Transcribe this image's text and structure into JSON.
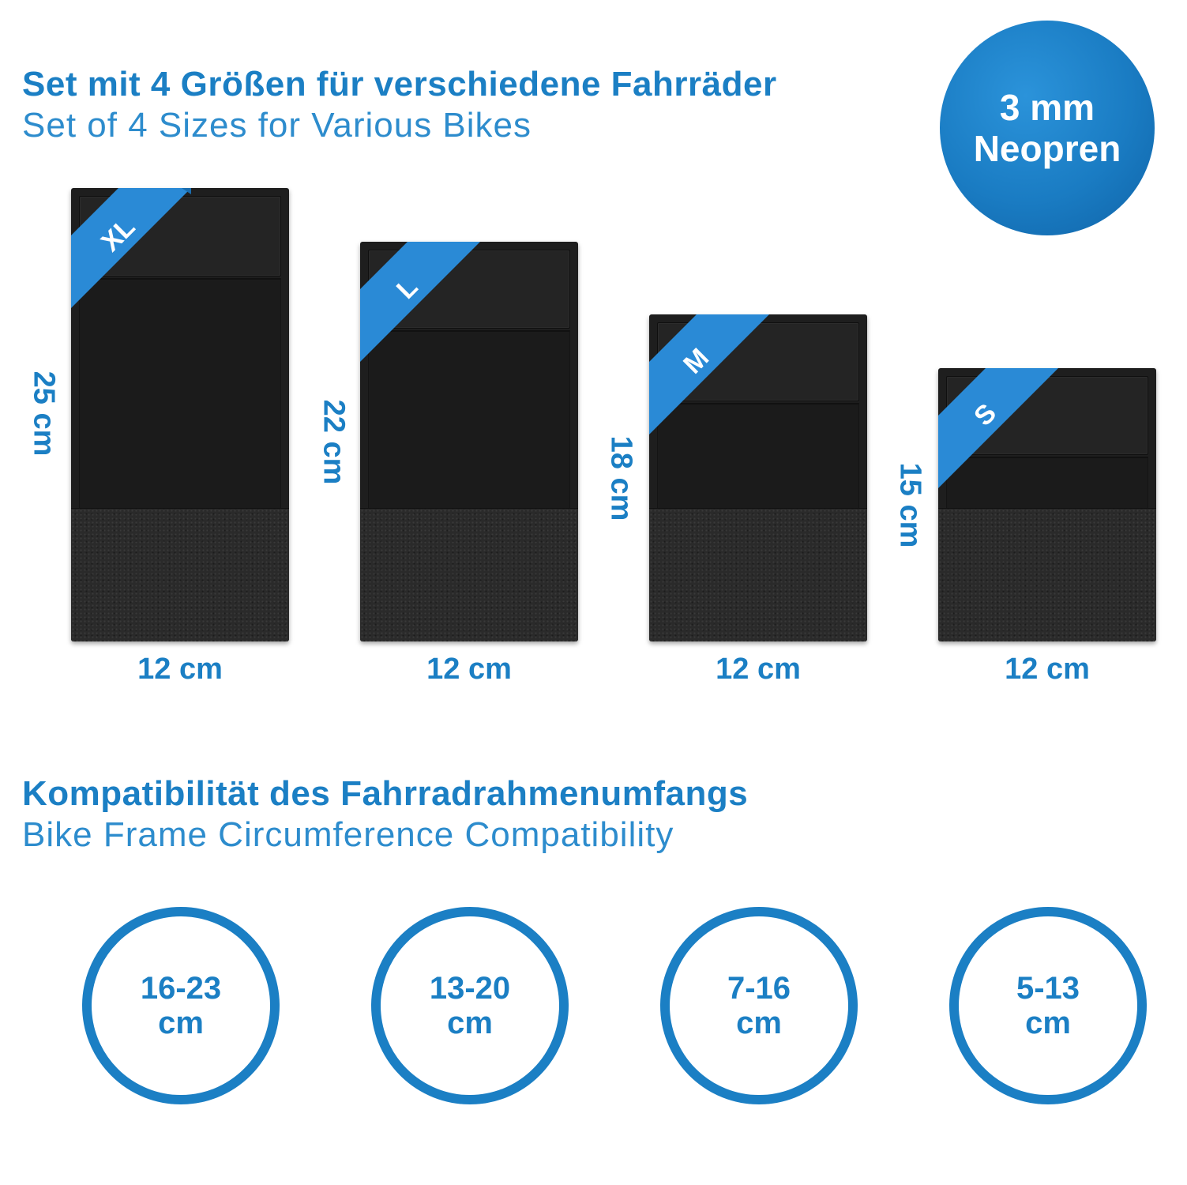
{
  "header": {
    "title_de": "Set mit 4 Größen für verschiedene Fahrräder",
    "title_en": "Set of 4 Sizes for Various Bikes"
  },
  "badge": {
    "line1": "3 mm",
    "line2": "Neopren"
  },
  "sizes": [
    {
      "label": "XL",
      "width": "12 cm",
      "height": "25 cm"
    },
    {
      "label": "L",
      "width": "12 cm",
      "height": "22 cm"
    },
    {
      "label": "M",
      "width": "12 cm",
      "height": "18 cm"
    },
    {
      "label": "S",
      "width": "12 cm",
      "height": "15 cm"
    }
  ],
  "compat": {
    "title_de": "Kompatibilität des Fahrradrahmenumfangs",
    "title_en": "Bike Frame Circumference Compatibility",
    "items": [
      {
        "range": "16-23",
        "unit": "cm"
      },
      {
        "range": "13-20",
        "unit": "cm"
      },
      {
        "range": "7-16",
        "unit": "cm"
      },
      {
        "range": "5-13",
        "unit": "cm"
      }
    ]
  },
  "colors": {
    "accent": "#1b7fc4",
    "pad": "#1e1e1e",
    "background": "#ffffff"
  }
}
